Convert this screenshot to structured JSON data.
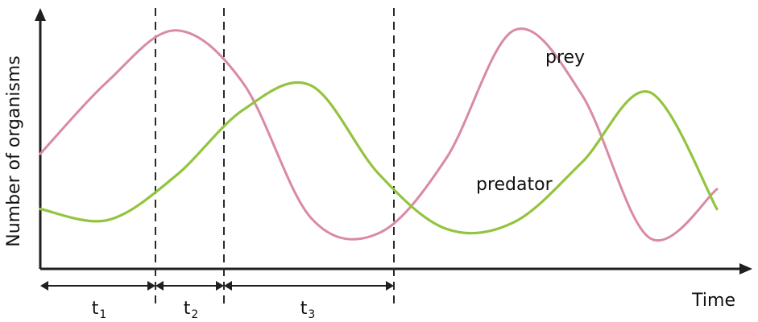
{
  "chart_data": {
    "type": "line",
    "xlabel": "Time",
    "ylabel": "Number of organisms",
    "x_ticks": [],
    "y_ticks": [],
    "grid": false,
    "series": [
      {
        "name": "prey",
        "color": "#d98aa5",
        "shape": "sinusoidal",
        "x": [
          0,
          10,
          20,
          30,
          40,
          50,
          60,
          70,
          80,
          90,
          100
        ],
        "values": [
          39,
          72,
          95,
          71,
          10,
          3,
          37,
          95,
          66,
          1,
          23
        ]
      },
      {
        "name": "predator",
        "color": "#93c43f",
        "shape": "sinusoidal",
        "x": [
          0,
          10,
          20,
          30,
          40,
          50,
          60,
          70,
          80,
          90,
          100
        ],
        "values": [
          14,
          9,
          29,
          59,
          70,
          30,
          5,
          8,
          35,
          67,
          14
        ]
      }
    ],
    "phase_markers": [
      {
        "label": "t",
        "sub": "1"
      },
      {
        "label": "t",
        "sub": "2"
      },
      {
        "label": "t",
        "sub": "3"
      }
    ]
  }
}
